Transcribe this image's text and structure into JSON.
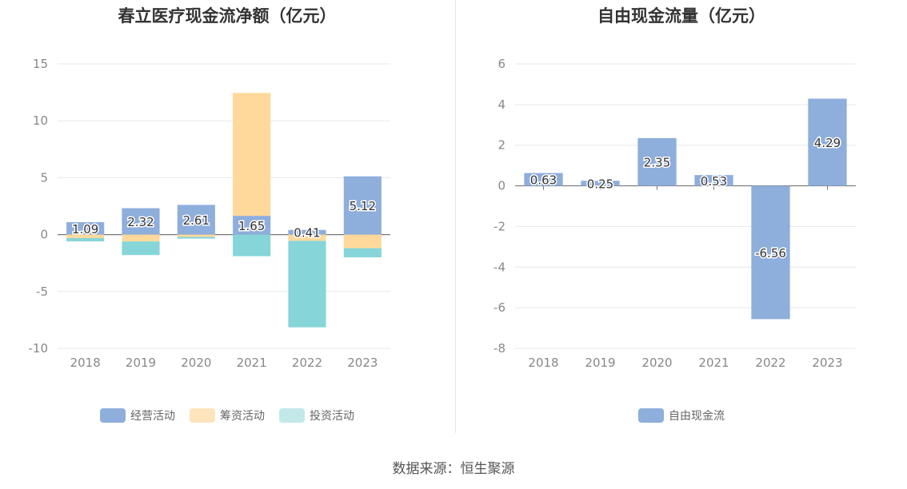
{
  "source_label": "数据来源：恒生聚源",
  "chart_data": [
    {
      "type": "bar",
      "stacked": true,
      "title": "春立医疗现金流净额（亿元）",
      "categories": [
        "2018",
        "2019",
        "2020",
        "2021",
        "2022",
        "2023"
      ],
      "ylim": [
        -10,
        15
      ],
      "yticks": [
        -10,
        -5,
        0,
        5,
        10,
        15
      ],
      "grid": true,
      "legend_position": "bottom",
      "series": [
        {
          "name": "经营活动",
          "color": "#8eaedc",
          "values": [
            1.09,
            2.32,
            2.61,
            1.65,
            0.41,
            5.12
          ],
          "labels": [
            "1.09",
            "2.32",
            "2.61",
            "1.65",
            "0.41",
            "5.12"
          ]
        },
        {
          "name": "筹资活动",
          "color": "#fed99b",
          "values": [
            -0.3,
            -0.6,
            -0.2,
            10.8,
            -0.55,
            -1.2
          ]
        },
        {
          "name": "投资活动",
          "color": "#86d5d8",
          "values": [
            -0.3,
            -1.2,
            -0.15,
            -1.9,
            -7.6,
            -0.8
          ]
        }
      ],
      "legend": [
        {
          "name": "经营活动",
          "color": "#8eaedc"
        },
        {
          "name": "筹资活动",
          "color": "#fde4bd"
        },
        {
          "name": "投资活动",
          "color": "#c2e8ea"
        }
      ]
    },
    {
      "type": "bar",
      "title": "自由现金流量（亿元）",
      "categories": [
        "2018",
        "2019",
        "2020",
        "2021",
        "2022",
        "2023"
      ],
      "ylim": [
        -8,
        6
      ],
      "yticks": [
        -8,
        -6,
        -4,
        -2,
        0,
        2,
        4,
        6
      ],
      "grid": true,
      "legend_position": "bottom",
      "series": [
        {
          "name": "自由现金流",
          "color": "#8eaedc",
          "values": [
            0.63,
            0.25,
            2.35,
            0.53,
            -6.56,
            4.29
          ],
          "labels": [
            "0.63",
            "0.25",
            "2.35",
            "0.53",
            "-6.56",
            "4.29"
          ]
        }
      ],
      "legend": [
        {
          "name": "自由现金流",
          "color": "#8eaedc"
        }
      ]
    }
  ]
}
